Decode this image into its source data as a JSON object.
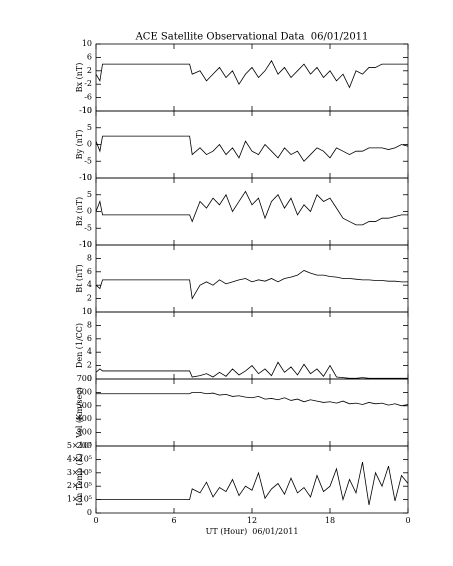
{
  "title": "ACE Satellite Observational Data  06/01/2011",
  "x_label": "UT (Hour)  06/01/2011",
  "chart_data": [
    {
      "type": "line",
      "y_label": "Bx (nT)",
      "color": "#000000",
      "xlim": [
        0,
        24
      ],
      "xticks": [
        0,
        6,
        12,
        18,
        {
          "value": 24,
          "label": "0"
        }
      ],
      "ylim": [
        -10,
        10
      ],
      "yticks": [
        -10,
        -6,
        -2,
        2,
        6,
        10
      ],
      "x": [
        0,
        0.3,
        0.5,
        7.2,
        7.4,
        8,
        8.5,
        9,
        9.5,
        10,
        10.5,
        11,
        11.5,
        12,
        12.5,
        13,
        13.5,
        14,
        14.5,
        15,
        15.5,
        16,
        16.5,
        17,
        17.5,
        18,
        18.5,
        19,
        19.5,
        20,
        20.5,
        21,
        21.5,
        22,
        22.5,
        23,
        23.5,
        24
      ],
      "values": [
        1,
        -1,
        4,
        4,
        1,
        2,
        -1,
        1,
        3,
        0,
        2,
        -2,
        1,
        3,
        0,
        2,
        5,
        1,
        3,
        0,
        2,
        4,
        1,
        3,
        0,
        2,
        -1,
        1,
        -3,
        2,
        1,
        3,
        3,
        4,
        4,
        4,
        4,
        4
      ]
    },
    {
      "type": "line",
      "y_label": "By (nT)",
      "color": "#000000",
      "xlim": [
        0,
        24
      ],
      "xticks": [
        0,
        6,
        12,
        18,
        {
          "value": 24,
          "label": "0"
        }
      ],
      "ylim": [
        -10,
        10
      ],
      "yticks": [
        -10,
        -5,
        0,
        5,
        10
      ],
      "x": [
        0,
        0.3,
        0.5,
        7.2,
        7.4,
        8,
        8.5,
        9,
        9.5,
        10,
        10.5,
        11,
        11.5,
        12,
        12.5,
        13,
        13.5,
        14,
        14.5,
        15,
        15.5,
        16,
        16.5,
        17,
        17.5,
        18,
        18.5,
        19,
        19.5,
        20,
        20.5,
        21,
        21.5,
        22,
        22.5,
        23,
        23.5,
        24
      ],
      "values": [
        1,
        -2,
        2.5,
        2.5,
        -3,
        -1,
        -3,
        -2,
        0,
        -3,
        -1,
        -4,
        1,
        -2,
        -3,
        0,
        -2,
        -4,
        -1,
        -3,
        -2,
        -5,
        -3,
        -1,
        -2,
        -4,
        -1,
        -2,
        -3,
        -2,
        -2,
        -1,
        -1,
        -1,
        -1.5,
        -1,
        0,
        -0.5
      ]
    },
    {
      "type": "line",
      "y_label": "Bz (nT)",
      "color": "#000000",
      "xlim": [
        0,
        24
      ],
      "xticks": [
        0,
        6,
        12,
        18,
        {
          "value": 24,
          "label": "0"
        }
      ],
      "ylim": [
        -10,
        10
      ],
      "yticks": [
        -10,
        -5,
        0,
        5,
        10
      ],
      "x": [
        0,
        0.3,
        0.5,
        7.2,
        7.4,
        8,
        8.5,
        9,
        9.5,
        10,
        10.5,
        11,
        11.5,
        12,
        12.5,
        13,
        13.5,
        14,
        14.5,
        15,
        15.5,
        16,
        16.5,
        17,
        17.5,
        18,
        18.5,
        19,
        19.5,
        20,
        20.5,
        21,
        21.5,
        22,
        22.5,
        23,
        23.5,
        24
      ],
      "values": [
        0,
        3,
        -1,
        -1,
        -3,
        3,
        1,
        4,
        2,
        5,
        0,
        3,
        6,
        2,
        4,
        -2,
        3,
        5,
        1,
        4,
        -1,
        2,
        0,
        5,
        3,
        4,
        1,
        -2,
        -3,
        -4,
        -4,
        -3,
        -3,
        -2,
        -2,
        -1.5,
        -1,
        -1
      ]
    },
    {
      "type": "line",
      "y_label": "Bt (nT)",
      "color": "#000000",
      "xlim": [
        0,
        24
      ],
      "xticks": [
        0,
        6,
        12,
        18,
        {
          "value": 24,
          "label": "0"
        }
      ],
      "ylim": [
        0,
        10
      ],
      "yticks": [
        0,
        2,
        4,
        6,
        8,
        10
      ],
      "x": [
        0,
        0.3,
        0.5,
        7.2,
        7.4,
        8,
        8.5,
        9,
        9.5,
        10,
        10.5,
        11,
        11.5,
        12,
        12.5,
        13,
        13.5,
        14,
        14.5,
        15,
        15.5,
        16,
        16.5,
        17,
        17.5,
        18,
        18.5,
        19,
        19.5,
        20,
        20.5,
        21,
        21.5,
        22,
        22.5,
        23,
        23.5,
        24
      ],
      "values": [
        4,
        3.5,
        4.8,
        4.8,
        2,
        4,
        4.5,
        4,
        4.8,
        4.2,
        4.5,
        4.8,
        5,
        4.5,
        4.8,
        4.6,
        5,
        4.5,
        5,
        5.2,
        5.5,
        6.2,
        5.8,
        5.5,
        5.5,
        5.3,
        5.2,
        5,
        5,
        4.9,
        4.8,
        4.8,
        4.7,
        4.7,
        4.6,
        4.6,
        4.5,
        4.5
      ]
    },
    {
      "type": "line",
      "y_label": "Den (1/CC)",
      "color": "#000000",
      "xlim": [
        0,
        24
      ],
      "xticks": [
        0,
        6,
        12,
        18,
        {
          "value": 24,
          "label": "0"
        }
      ],
      "ylim": [
        0,
        10
      ],
      "yticks": [
        0,
        2,
        4,
        6,
        8,
        10
      ],
      "x": [
        0,
        0.3,
        0.5,
        7.2,
        7.4,
        8,
        8.5,
        9,
        9.5,
        10,
        10.5,
        11,
        11.5,
        12,
        12.5,
        13,
        13.5,
        14,
        14.5,
        15,
        15.5,
        16,
        16.5,
        17,
        17.5,
        18,
        18.5,
        19,
        19.5,
        20,
        20.5,
        21,
        21.5,
        22,
        22.5,
        23,
        23.5,
        24
      ],
      "values": [
        1,
        1.5,
        1.2,
        1.2,
        0.3,
        0.5,
        0.8,
        0.3,
        1,
        0.4,
        1.5,
        0.6,
        1.2,
        2,
        0.8,
        1.5,
        0.5,
        2.5,
        1,
        1.8,
        0.6,
        2.2,
        0.8,
        1.5,
        0.4,
        2,
        0.3,
        0.2,
        0.1,
        0.1,
        0.2,
        0.1,
        0.1,
        0.1,
        0.1,
        0.1,
        0.1,
        0.1
      ]
    },
    {
      "type": "line",
      "y_label": "Vel (Km/sec)",
      "color": "#000000",
      "xlim": [
        0,
        24
      ],
      "xticks": [
        0,
        6,
        12,
        18,
        {
          "value": 24,
          "label": "0"
        }
      ],
      "ylim": [
        200,
        700
      ],
      "yticks": [
        200,
        300,
        400,
        500,
        600,
        700
      ],
      "x": [
        0,
        0.3,
        0.5,
        7.2,
        7.4,
        8,
        8.5,
        9,
        9.5,
        10,
        10.5,
        11,
        11.5,
        12,
        12.5,
        13,
        13.5,
        14,
        14.5,
        15,
        15.5,
        16,
        16.5,
        17,
        17.5,
        18,
        18.5,
        19,
        19.5,
        20,
        20.5,
        21,
        21.5,
        22,
        22.5,
        23,
        23.5,
        24
      ],
      "values": [
        590,
        590,
        590,
        590,
        600,
        600,
        590,
        595,
        580,
        585,
        570,
        575,
        565,
        560,
        570,
        550,
        555,
        545,
        560,
        540,
        550,
        530,
        545,
        535,
        525,
        530,
        520,
        535,
        515,
        520,
        510,
        525,
        515,
        520,
        505,
        515,
        500,
        510
      ]
    },
    {
      "type": "line",
      "y_label": "Ion Temp (K)",
      "color": "#000000",
      "xlim": [
        0,
        24
      ],
      "xticks": [
        0,
        6,
        12,
        18,
        {
          "value": 24,
          "label": "0"
        }
      ],
      "ylim": [
        0,
        500000
      ],
      "yticks": [
        0,
        {
          "value": 100000,
          "label": "1×10⁵"
        },
        {
          "value": 200000,
          "label": "2×10⁵"
        },
        {
          "value": 300000,
          "label": "3×10⁵"
        },
        {
          "value": 400000,
          "label": "4×10⁵"
        },
        {
          "value": 500000,
          "label": "5×10⁵"
        }
      ],
      "x": [
        0,
        0.3,
        0.5,
        7.2,
        7.4,
        8,
        8.5,
        9,
        9.5,
        10,
        10.5,
        11,
        11.5,
        12,
        12.5,
        13,
        13.5,
        14,
        14.5,
        15,
        15.5,
        16,
        16.5,
        17,
        17.5,
        18,
        18.5,
        19,
        19.5,
        20,
        20.5,
        21,
        21.5,
        22,
        22.5,
        23,
        23.5,
        24
      ],
      "values": [
        100000,
        100000,
        100000,
        100000,
        180000,
        150000,
        230000,
        120000,
        190000,
        160000,
        250000,
        130000,
        200000,
        170000,
        300000,
        110000,
        180000,
        220000,
        140000,
        260000,
        150000,
        190000,
        120000,
        280000,
        160000,
        200000,
        330000,
        100000,
        250000,
        150000,
        380000,
        60000,
        300000,
        200000,
        350000,
        90000,
        280000,
        220000
      ]
    }
  ]
}
